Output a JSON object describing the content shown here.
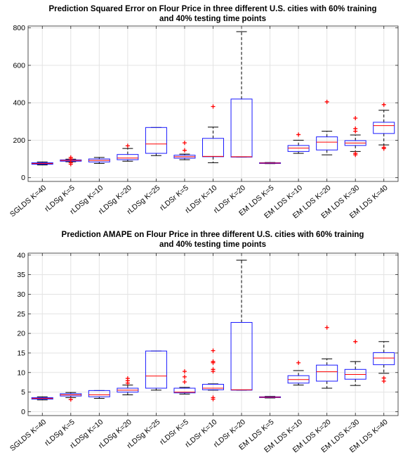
{
  "chart_data": [
    {
      "type": "box",
      "title_lines": [
        "Prediction Squared Error on Flour Price in three different U.S. cities with 60% training",
        "and  40% testing time points"
      ],
      "ylim": [
        -20,
        810
      ],
      "yticks": [
        0,
        200,
        400,
        600,
        800
      ],
      "grid": true,
      "categories": [
        "SGLDS K=40",
        "rLDSg K=5",
        "rLDSg K=10",
        "rLDSg K=20",
        "rLDSg K=25",
        "rLDSr K=5",
        "rLDSr K=10",
        "rLDSr K=20",
        "EM LDS K=5",
        "EM LDS K=10",
        "EM LDS K=20",
        "EM LDS K=30",
        "EM LDS K=40"
      ],
      "boxes": [
        {
          "low": 68,
          "q1": 72,
          "median": 76,
          "q3": 80,
          "high": 84,
          "outliers": []
        },
        {
          "low": 85,
          "q1": 88,
          "median": 92,
          "q3": 95,
          "high": 99,
          "outliers": [
            72,
            80,
            100,
            108
          ]
        },
        {
          "low": 76,
          "q1": 84,
          "median": 92,
          "q3": 100,
          "high": 108,
          "outliers": []
        },
        {
          "low": 88,
          "q1": 96,
          "median": 105,
          "q3": 124,
          "high": 156,
          "outliers": [
            170
          ]
        },
        {
          "low": 118,
          "q1": 130,
          "median": 180,
          "q3": 268,
          "high": 268,
          "outliers": []
        },
        {
          "low": 96,
          "q1": 104,
          "median": 112,
          "q3": 120,
          "high": 126,
          "outliers": [
            146,
            186
          ]
        },
        {
          "low": 80,
          "q1": 112,
          "median": 114,
          "q3": 210,
          "high": 270,
          "outliers": [
            380
          ]
        },
        {
          "low": 110,
          "q1": 110,
          "median": 112,
          "q3": 420,
          "high": 780,
          "outliers": []
        },
        {
          "low": 75,
          "q1": 76,
          "median": 78,
          "q3": 80,
          "high": 81,
          "outliers": []
        },
        {
          "low": 130,
          "q1": 140,
          "median": 158,
          "q3": 172,
          "high": 200,
          "outliers": [
            230
          ]
        },
        {
          "low": 122,
          "q1": 148,
          "median": 190,
          "q3": 218,
          "high": 248,
          "outliers": [
            405
          ]
        },
        {
          "low": 140,
          "q1": 172,
          "median": 185,
          "q3": 198,
          "high": 228,
          "outliers": [
            122,
            130,
            248,
            262,
            318
          ]
        },
        {
          "low": 175,
          "q1": 236,
          "median": 278,
          "q3": 296,
          "high": 360,
          "outliers": [
            155,
            162,
            390
          ]
        }
      ]
    },
    {
      "type": "box",
      "title_lines": [
        "Prediction AMAPE on Flour Price in three different U.S. cities with 60% training",
        "and 40% testing time points"
      ],
      "ylim": [
        -1,
        40.5
      ],
      "yticks": [
        0,
        5,
        10,
        15,
        20,
        25,
        30,
        35,
        40
      ],
      "grid": true,
      "categories": [
        "SGLDS K=40",
        "rLDSg K=5",
        "rLDSg K=10",
        "rLDSg K=20",
        "rLDSg K=25",
        "rLDSr K=5",
        "rLDSr K=10",
        "rLDSr K=20",
        "EM LDS K=5",
        "EM LDS K=10",
        "EM LDS K=20",
        "EM LDS K=30",
        "EM LDS K=40"
      ],
      "boxes": [
        {
          "low": 3.0,
          "q1": 3.2,
          "median": 3.4,
          "q3": 3.6,
          "high": 3.8,
          "outliers": []
        },
        {
          "low": 3.6,
          "q1": 4.0,
          "median": 4.3,
          "q3": 4.6,
          "high": 4.9,
          "outliers": [
            3.1
          ]
        },
        {
          "low": 3.4,
          "q1": 3.8,
          "median": 4.3,
          "q3": 5.4,
          "high": 5.4,
          "outliers": []
        },
        {
          "low": 4.3,
          "q1": 5.0,
          "median": 5.5,
          "q3": 6.0,
          "high": 6.8,
          "outliers": [
            7.3,
            7.9,
            8.5
          ]
        },
        {
          "low": 5.5,
          "q1": 6.0,
          "median": 9.1,
          "q3": 15.5,
          "high": 15.5,
          "outliers": []
        },
        {
          "low": 4.5,
          "q1": 4.8,
          "median": 5.0,
          "q3": 6.0,
          "high": 6.2,
          "outliers": [
            7.6,
            8.9,
            10.3
          ]
        },
        {
          "low": 5.5,
          "q1": 5.6,
          "median": 6.0,
          "q3": 7.0,
          "high": 7.1,
          "outliers": [
            3.2,
            3.6,
            10.3,
            10.8,
            12.5,
            12.8,
            15.6
          ]
        },
        {
          "low": 5.5,
          "q1": 5.5,
          "median": 5.6,
          "q3": 22.8,
          "high": 38.7,
          "outliers": []
        },
        {
          "low": 3.5,
          "q1": 3.6,
          "median": 3.7,
          "q3": 3.8,
          "high": 3.9,
          "outliers": []
        },
        {
          "low": 6.8,
          "q1": 7.3,
          "median": 8.2,
          "q3": 9.2,
          "high": 10.5,
          "outliers": [
            12.5
          ]
        },
        {
          "low": 6.0,
          "q1": 7.8,
          "median": 10.2,
          "q3": 11.9,
          "high": 13.5,
          "outliers": [
            21.5
          ]
        },
        {
          "low": 6.7,
          "q1": 8.3,
          "median": 9.5,
          "q3": 10.8,
          "high": 12.8,
          "outliers": [
            17.9
          ]
        },
        {
          "low": 9.8,
          "q1": 12.0,
          "median": 13.7,
          "q3": 15.1,
          "high": 17.9,
          "outliers": [
            7.8,
            8.6
          ]
        }
      ]
    }
  ]
}
